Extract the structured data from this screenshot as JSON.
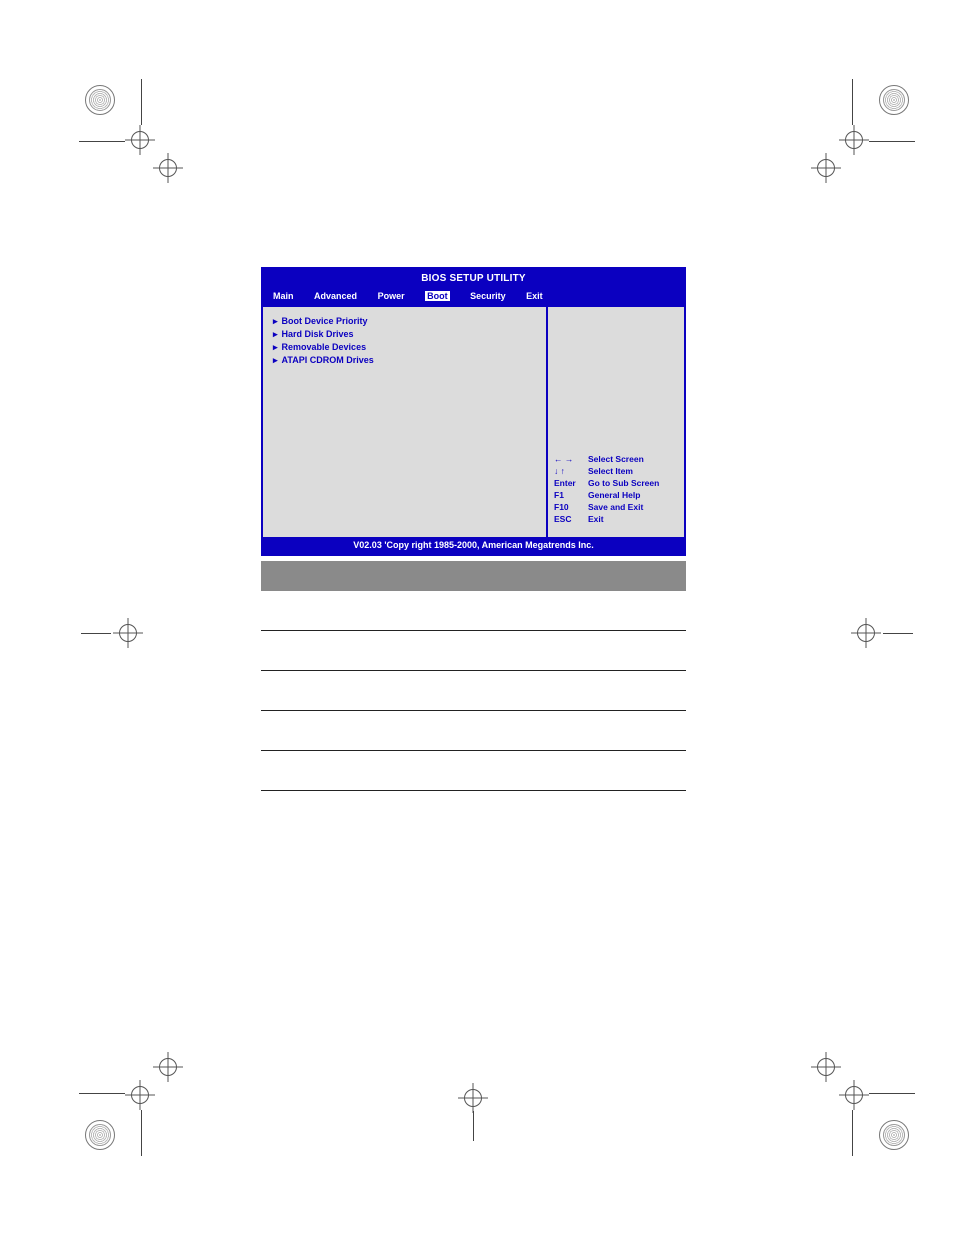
{
  "bios": {
    "title": "BIOS SETUP UTILITY",
    "menu": {
      "items": [
        "Main",
        "Advanced",
        "Power",
        "Boot",
        "Security",
        "Exit"
      ],
      "selected_index": 3
    },
    "left_items": [
      "Boot Device Priority",
      "Hard Disk Drives",
      "Removable Devices",
      "ATAPI CDROM Drives"
    ],
    "help": [
      {
        "key": "← →",
        "desc": "Select Screen"
      },
      {
        "key": "↓ ↑",
        "desc": "Select Item"
      },
      {
        "key": "Enter",
        "desc": "Go to Sub Screen"
      },
      {
        "key": "F1",
        "desc": "General Help"
      },
      {
        "key": "F10",
        "desc": "Save and Exit"
      },
      {
        "key": "ESC",
        "desc": "Exit"
      }
    ],
    "footer": "V02.03 'Copy  right 1985-2000, American Megatrends Inc.",
    "colors": {
      "frame": "#0b00c0",
      "body_bg": "#dcdcdc",
      "text_on_blue": "#ffffff"
    }
  },
  "lines_y": [
    630,
    670,
    710,
    750,
    790
  ],
  "gray_bar_color": "#8a8a8a"
}
